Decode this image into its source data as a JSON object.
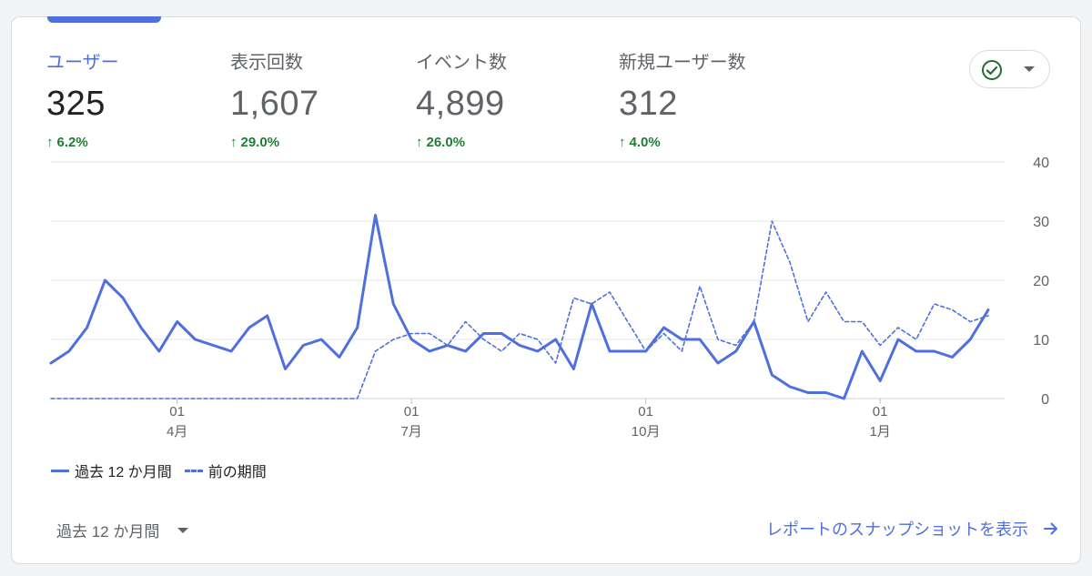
{
  "metrics": [
    {
      "label": "ユーザー",
      "value": "325",
      "change": "6.2%",
      "active": true
    },
    {
      "label": "表示回数",
      "value": "1,607",
      "change": "29.0%",
      "active": false
    },
    {
      "label": "イベント数",
      "value": "4,899",
      "change": "26.0%",
      "active": false
    },
    {
      "label": "新規ユーザー数",
      "value": "312",
      "change": "4.0%",
      "active": false
    }
  ],
  "compare_dropdown": {
    "icon": "check-circle-icon",
    "caret": "chevron-down-icon"
  },
  "legend": {
    "current": "過去 12 か月間",
    "previous": "前の期間"
  },
  "footer": {
    "period": "過去 12 か月間",
    "report_link": "レポートのスナップショットを表示"
  },
  "colors": {
    "accent": "#4e6fdd",
    "positive": "#1e7e34",
    "grid": "#e0e0e0",
    "text_secondary": "#5f6368"
  },
  "chart_data": {
    "type": "line",
    "ylim": [
      0,
      40
    ],
    "yticks": [
      "0",
      "10",
      "20",
      "30",
      "40"
    ],
    "xtick_labels": [
      {
        "day": "01",
        "month": "4月",
        "index": 7
      },
      {
        "day": "01",
        "month": "7月",
        "index": 20
      },
      {
        "day": "01",
        "month": "10月",
        "index": 33
      },
      {
        "day": "01",
        "month": "1月",
        "index": 46
      }
    ],
    "series": [
      {
        "name": "過去 12 か月間",
        "style": "solid",
        "values": [
          6,
          8,
          12,
          20,
          17,
          12,
          8,
          13,
          10,
          9,
          8,
          12,
          14,
          5,
          9,
          10,
          7,
          12,
          31,
          16,
          10,
          8,
          9,
          8,
          11,
          11,
          9,
          8,
          10,
          5,
          16,
          8,
          8,
          8,
          12,
          10,
          10,
          6,
          8,
          13,
          4,
          2,
          1,
          1,
          0,
          8,
          3,
          10,
          8,
          8,
          7,
          10,
          15
        ]
      },
      {
        "name": "前の期間",
        "style": "dashed",
        "values": [
          0,
          0,
          0,
          0,
          0,
          0,
          0,
          0,
          0,
          0,
          0,
          0,
          0,
          0,
          0,
          0,
          0,
          0,
          8,
          10,
          11,
          11,
          9,
          13,
          10,
          8,
          11,
          10,
          6,
          17,
          16,
          18,
          13,
          8,
          11,
          8,
          19,
          10,
          9,
          13,
          30,
          23,
          13,
          18,
          13,
          13,
          9,
          12,
          10,
          16,
          15,
          13,
          14
        ]
      }
    ]
  }
}
